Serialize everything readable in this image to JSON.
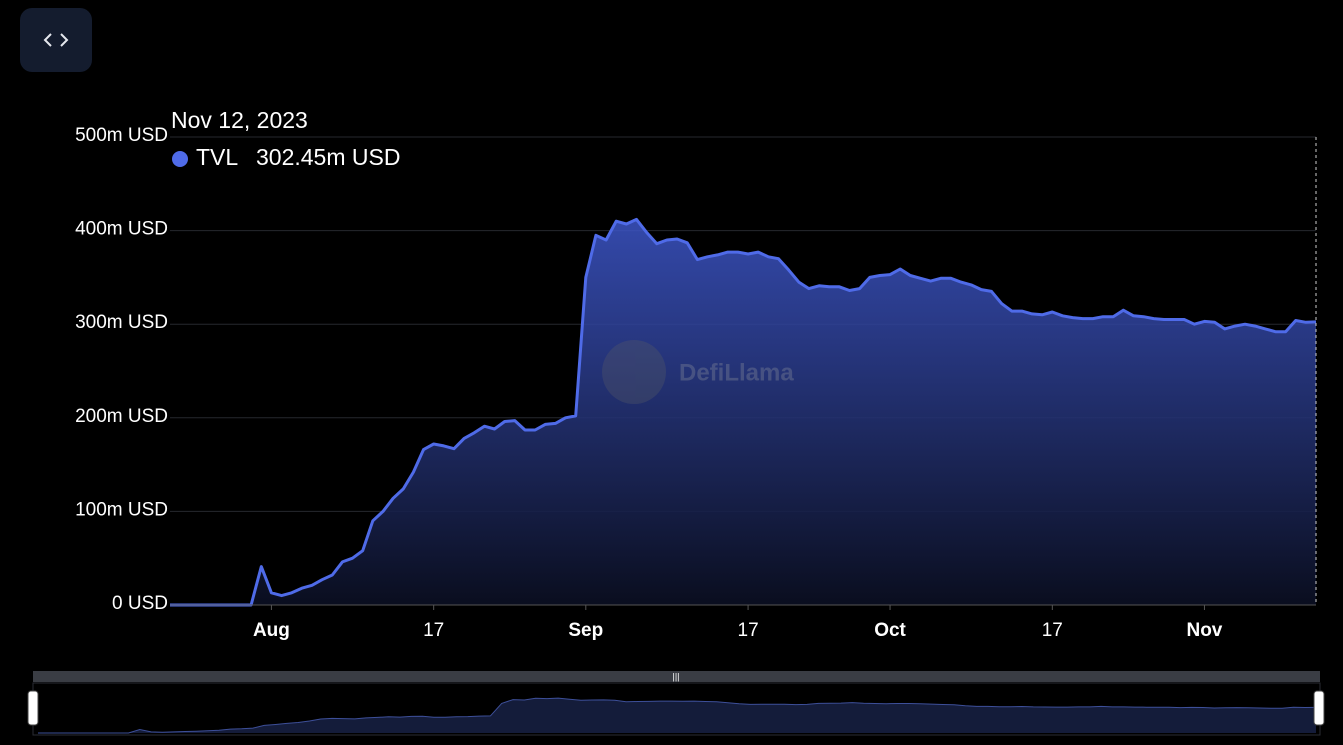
{
  "chart_data": {
    "type": "area",
    "tooltip": {
      "date": "Nov 12, 2023",
      "value_label": "302.45m USD"
    },
    "watermark": "DefiLlama",
    "x": [
      "2023-07-22",
      "2023-07-23",
      "2023-07-24",
      "2023-07-25",
      "2023-07-26",
      "2023-07-27",
      "2023-07-28",
      "2023-07-29",
      "2023-07-30",
      "2023-07-31",
      "2023-08-01",
      "2023-08-02",
      "2023-08-03",
      "2023-08-04",
      "2023-08-05",
      "2023-08-06",
      "2023-08-07",
      "2023-08-08",
      "2023-08-09",
      "2023-08-10",
      "2023-08-11",
      "2023-08-12",
      "2023-08-13",
      "2023-08-14",
      "2023-08-15",
      "2023-08-16",
      "2023-08-17",
      "2023-08-18",
      "2023-08-19",
      "2023-08-20",
      "2023-08-21",
      "2023-08-22",
      "2023-08-23",
      "2023-08-24",
      "2023-08-25",
      "2023-08-26",
      "2023-08-27",
      "2023-08-28",
      "2023-08-29",
      "2023-08-30",
      "2023-08-31",
      "2023-09-01",
      "2023-09-02",
      "2023-09-03",
      "2023-09-04",
      "2023-09-05",
      "2023-09-06",
      "2023-09-07",
      "2023-09-08",
      "2023-09-09",
      "2023-09-10",
      "2023-09-11",
      "2023-09-12",
      "2023-09-13",
      "2023-09-14",
      "2023-09-15",
      "2023-09-16",
      "2023-09-17",
      "2023-09-18",
      "2023-09-19",
      "2023-09-20",
      "2023-09-21",
      "2023-09-22",
      "2023-09-23",
      "2023-09-24",
      "2023-09-25",
      "2023-09-26",
      "2023-09-27",
      "2023-09-28",
      "2023-09-29",
      "2023-09-30",
      "2023-10-01",
      "2023-10-02",
      "2023-10-03",
      "2023-10-04",
      "2023-10-05",
      "2023-10-06",
      "2023-10-07",
      "2023-10-08",
      "2023-10-09",
      "2023-10-10",
      "2023-10-11",
      "2023-10-12",
      "2023-10-13",
      "2023-10-14",
      "2023-10-15",
      "2023-10-16",
      "2023-10-17",
      "2023-10-18",
      "2023-10-19",
      "2023-10-20",
      "2023-10-21",
      "2023-10-22",
      "2023-10-23",
      "2023-10-24",
      "2023-10-25",
      "2023-10-26",
      "2023-10-27",
      "2023-10-28",
      "2023-10-29",
      "2023-10-30",
      "2023-10-31",
      "2023-11-01",
      "2023-11-02",
      "2023-11-03",
      "2023-11-04",
      "2023-11-05",
      "2023-11-06",
      "2023-11-07",
      "2023-11-08",
      "2023-11-09",
      "2023-11-10",
      "2023-11-11",
      "2023-11-12"
    ],
    "series": [
      {
        "name": "TVL",
        "color": "#4f6be8",
        "values": [
          0,
          0,
          0,
          0,
          0,
          0,
          0,
          0,
          0,
          41,
          13,
          10,
          13,
          18,
          21,
          27,
          32,
          46,
          50,
          58,
          90,
          100,
          114,
          124,
          142,
          166,
          172,
          170,
          167,
          178,
          184,
          191,
          188,
          196,
          197,
          187,
          187,
          193,
          194,
          200,
          202,
          350,
          395,
          390,
          410,
          407,
          412,
          398,
          386,
          390,
          391,
          387,
          369,
          372,
          374,
          377,
          377,
          375,
          377,
          372,
          370,
          358,
          345,
          338,
          341,
          340,
          340,
          336,
          338,
          350,
          352,
          353,
          359,
          352,
          349,
          346,
          349,
          349,
          345,
          342,
          337,
          335,
          322,
          314,
          314,
          311,
          310,
          313,
          309,
          307,
          306,
          306,
          308,
          308,
          315,
          309,
          308,
          306,
          305,
          305,
          305,
          300,
          303,
          302,
          295,
          298,
          300,
          298,
          295,
          292,
          292,
          304,
          302,
          302.45
        ]
      }
    ],
    "xlim": [
      "2023-07-22",
      "2023-11-12"
    ],
    "xticks": [
      {
        "value": "2023-08-01",
        "label": "Aug"
      },
      {
        "value": "2023-08-17",
        "label": "17"
      },
      {
        "value": "2023-09-01",
        "label": "Sep"
      },
      {
        "value": "2023-09-17",
        "label": "17"
      },
      {
        "value": "2023-10-01",
        "label": "Oct"
      },
      {
        "value": "2023-10-17",
        "label": "17"
      },
      {
        "value": "2023-11-01",
        "label": "Nov"
      }
    ],
    "ylim": [
      0,
      500
    ],
    "yticks": [
      {
        "value": 0,
        "label": "0 USD"
      },
      {
        "value": 100,
        "label": "100m USD"
      },
      {
        "value": 200,
        "label": "200m USD"
      },
      {
        "value": 300,
        "label": "300m USD"
      },
      {
        "value": 400,
        "label": "400m USD"
      },
      {
        "value": 500,
        "label": "500m USD"
      }
    ],
    "grid": true
  }
}
